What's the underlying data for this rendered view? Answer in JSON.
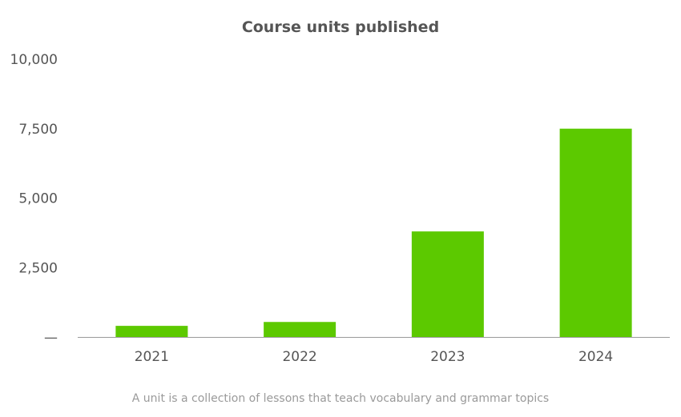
{
  "chart_data": {
    "type": "bar",
    "title": "Course units published",
    "categories": [
      "2021",
      "2022",
      "2023",
      "2024"
    ],
    "values": [
      400,
      540,
      3800,
      7500
    ],
    "xlabel": "",
    "ylabel": "",
    "ylim": [
      0,
      10000
    ],
    "yticks": [
      0,
      2500,
      5000,
      7500,
      10000
    ],
    "ytick_labels": [
      "—",
      "2,500",
      "5,000",
      "7,500",
      "10,000"
    ],
    "bar_color": "#5cc900",
    "grid": false,
    "legend": "none",
    "caption": "A unit is a collection of lessons that teach vocabulary and grammar topics"
  }
}
